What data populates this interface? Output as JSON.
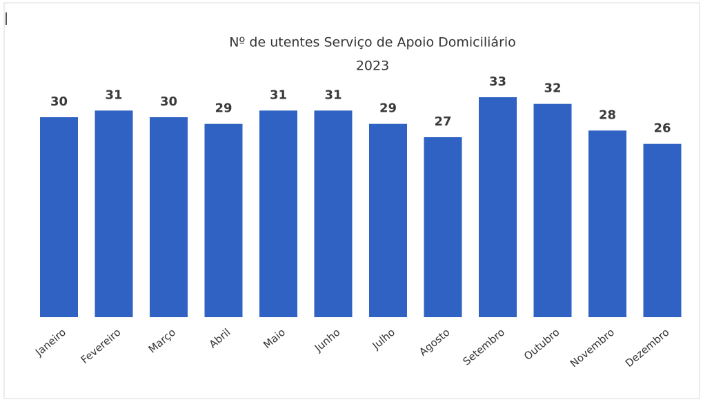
{
  "chart_data": {
    "type": "bar",
    "title": "Nº de utentes Serviço de Apoio Domiciliário",
    "subtitle": "2023",
    "categories": [
      "Janeiro",
      "Fevereiro",
      "Março",
      "Abril",
      "Maio",
      "Junho",
      "Julho",
      "Agosto",
      "Setembro",
      "Outubro",
      "Novembro",
      "Dezembro"
    ],
    "values": [
      30,
      31,
      30,
      29,
      31,
      31,
      29,
      27,
      33,
      32,
      28,
      26
    ],
    "color": "#2f62c2"
  }
}
